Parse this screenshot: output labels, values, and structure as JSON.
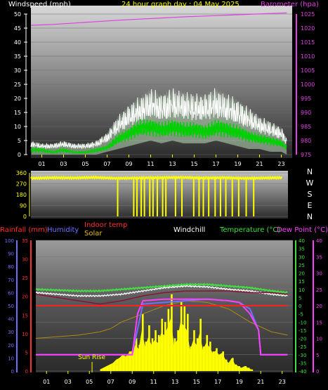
{
  "colors": {
    "wind": "#ffffff",
    "gust": "#ffffff",
    "avg": "#00d000",
    "barometer": "#e040e0",
    "direction": "#ffff00",
    "rainfall": "#ff2020",
    "humidity": "#7070ff",
    "indoor": "#ff3030",
    "solar": "#ffff00",
    "windchill": "#ffffff",
    "temperature": "#40e040",
    "dewpoint": "#ff40ff",
    "tick_yellow": "#ffff00"
  },
  "chart_data": [
    {
      "type": "line",
      "title": "24 hour graph day : 04 May 2025",
      "left_axis_label": "Windspeed (mph)",
      "right_axis_label": "Barometer (hpa)",
      "y_ticks": [
        "50",
        "45",
        "40",
        "35",
        "30",
        "25",
        "20",
        "15",
        "10",
        "5",
        "0"
      ],
      "y_right_ticks": [
        "1025",
        "1020",
        "1015",
        "1010",
        "1005",
        "1000",
        "995",
        "990",
        "985",
        "980",
        "975"
      ],
      "ylim": [
        0,
        50
      ],
      "ylim_right": [
        975,
        1025
      ],
      "xlim": [
        0,
        24
      ],
      "series": [
        {
          "role": "barometer",
          "x": [
            0,
            2,
            4,
            6,
            8,
            10,
            12,
            14,
            16,
            18,
            20,
            22,
            23.5
          ],
          "y": [
            1021,
            1021.3,
            1021.8,
            1022.3,
            1022.8,
            1023.2,
            1023.6,
            1024.0,
            1024.3,
            1024.6,
            1024.9,
            1025.2,
            1025.4
          ]
        },
        {
          "role": "gust",
          "x": [
            0,
            1,
            2,
            3,
            4,
            5,
            6,
            7,
            8,
            9,
            10,
            11,
            12,
            13,
            14,
            15,
            16,
            17,
            18,
            19,
            20,
            21,
            22,
            23,
            23.5
          ],
          "y": [
            5,
            4,
            4,
            5,
            4,
            4,
            5,
            8,
            14,
            18,
            21,
            24,
            22,
            24,
            23,
            22,
            22,
            24,
            22,
            20,
            17,
            14,
            12,
            10,
            6
          ]
        },
        {
          "role": "wind_average",
          "x": [
            0,
            1,
            2,
            3,
            4,
            5,
            6,
            7,
            8,
            9,
            10,
            11,
            12,
            13,
            14,
            15,
            16,
            17,
            18,
            19,
            20,
            21,
            22,
            23,
            23.5
          ],
          "y": [
            2,
            2,
            1,
            2,
            1,
            1,
            2,
            3,
            7,
            9,
            12,
            12,
            11,
            12,
            11,
            11,
            10,
            12,
            11,
            10,
            8,
            7,
            6,
            5,
            3
          ]
        },
        {
          "role": "wind_minimum",
          "x": [
            0,
            1,
            2,
            3,
            4,
            5,
            6,
            7,
            8,
            9,
            10,
            11,
            12,
            13,
            14,
            15,
            16,
            17,
            18,
            19,
            20,
            21,
            22,
            23,
            23.5
          ],
          "y": [
            0,
            0,
            0,
            0,
            0,
            0,
            0,
            1,
            2,
            3,
            4,
            5,
            4,
            5,
            4,
            4,
            4,
            5,
            4,
            3,
            2,
            2,
            1,
            1,
            0
          ]
        }
      ]
    },
    {
      "type": "scatter",
      "title": "",
      "y_ticks": [
        "360",
        "270",
        "180",
        "90",
        "0"
      ],
      "compass": [
        "N",
        "W",
        "S",
        "E",
        "N"
      ],
      "ylim": [
        0,
        360
      ],
      "xlim": [
        0,
        24
      ],
      "base_direction": {
        "x": [
          0,
          2,
          4,
          6,
          8,
          10,
          12,
          14,
          16,
          18,
          20,
          22,
          23.5
        ],
        "y": [
          315,
          320,
          318,
          322,
          315,
          318,
          320,
          322,
          318,
          320,
          315,
          318,
          320
        ]
      },
      "spikes_to_zero_hours": [
        8.1,
        9.6,
        9.9,
        10.3,
        10.6,
        11.1,
        11.4,
        11.8,
        12.3,
        12.6,
        13.5,
        14.1,
        15.2,
        15.7,
        16.1,
        16.6,
        17.2,
        17.7,
        18.2,
        18.8,
        19.4,
        20.1,
        20.8
      ]
    },
    {
      "type": "line",
      "labels": {
        "rainfall": "Rainfall (mm)",
        "humidity": "Humidity",
        "indoor": "Indoor temp",
        "solar": "Solar",
        "windchill": "Windchill",
        "temperature": "Temperature (°C)",
        "dewpoint": "Dew Point (°C)",
        "sunrise": "Sun Rise"
      },
      "axis_humidity": [
        "100",
        "90",
        "80",
        "70",
        "60",
        "50",
        "40",
        "30",
        "20",
        "10",
        "0"
      ],
      "axis_rain": [
        "35",
        "30",
        "25",
        "20",
        "15",
        "10",
        "5",
        "0"
      ],
      "axis_temp": [
        "40",
        "35",
        "30",
        "25",
        "20",
        "15",
        "10",
        "5",
        "0",
        "-5",
        "-10",
        "-15",
        "-20",
        "-25",
        "-30",
        "-35",
        "-40"
      ],
      "axis_far_right": [
        "40",
        "35",
        "30",
        "25",
        "20",
        "15",
        "10",
        "5",
        "0"
      ],
      "ylim_temp": [
        -40,
        40
      ],
      "ylim_humidity": [
        0,
        100
      ],
      "xlim": [
        0,
        24
      ],
      "x_ticks": [
        "01",
        "03",
        "05",
        "07",
        "09",
        "11",
        "13",
        "15",
        "17",
        "19",
        "21",
        "23"
      ],
      "sunrise_hour": 5.25,
      "series": [
        {
          "role": "temperature",
          "x": [
            0,
            2,
            4,
            6,
            8,
            10,
            12,
            14,
            16,
            18,
            20,
            22,
            23.5
          ],
          "y": [
            10,
            9.5,
            9,
            9,
            10,
            11,
            12,
            13,
            13,
            12,
            11,
            9,
            8
          ]
        },
        {
          "role": "windchill",
          "x": [
            0,
            2,
            4,
            6,
            8,
            10,
            12,
            14,
            16,
            18,
            20,
            22,
            23.5
          ],
          "y": [
            8,
            7,
            6,
            6,
            7,
            9,
            11,
            12,
            11.5,
            10,
            9,
            7,
            6
          ]
        },
        {
          "role": "indoor",
          "x": [
            0,
            2,
            4,
            6,
            8,
            10,
            12,
            14,
            16,
            18,
            20,
            22,
            23.5
          ],
          "y": [
            7,
            5,
            3,
            1,
            3,
            6,
            8,
            9,
            9,
            9,
            8,
            8,
            7
          ]
        },
        {
          "role": "solar",
          "x": [
            0,
            2,
            4,
            6,
            7,
            8,
            10,
            12,
            14,
            16,
            18,
            20,
            22,
            23.5
          ],
          "y": [
            -20,
            -19,
            -18,
            -16,
            -14,
            -10,
            -5,
            0,
            3,
            2,
            -2,
            -10,
            -16,
            -18
          ]
        },
        {
          "role": "humidity",
          "x": [
            0,
            2,
            4,
            6,
            8,
            9,
            10,
            12,
            14,
            16,
            18,
            19,
            20,
            20.8,
            21,
            22,
            23.5
          ],
          "y": [
            -30,
            -30,
            -30,
            -30,
            -30,
            -30,
            1,
            2,
            3,
            4,
            3,
            2,
            -2,
            -15,
            -30,
            -30,
            -30
          ]
        },
        {
          "role": "dewpoint",
          "x": [
            0,
            2,
            4,
            6,
            8,
            9,
            9.5,
            10,
            12,
            14,
            16,
            18,
            19,
            20,
            20.8,
            21,
            22,
            23.5
          ],
          "y": [
            -30,
            -30,
            -30,
            -30,
            -30,
            -30,
            -5,
            3,
            4,
            4,
            4,
            3,
            2,
            -5,
            -15,
            -30,
            -30,
            -30
          ]
        },
        {
          "role": "rainfall",
          "x": [
            0,
            23.5
          ],
          "y": [
            0,
            0
          ]
        }
      ],
      "solar_bars": {
        "x": [
          6.0,
          6.3,
          6.6,
          6.9,
          7.2,
          7.5,
          7.8,
          8.1,
          8.4,
          8.7,
          9.0,
          9.3,
          9.6,
          9.9,
          10.2,
          10.5,
          10.8,
          11.1,
          11.4,
          11.7,
          12.0,
          12.3,
          12.6,
          12.9,
          13.2,
          13.5,
          13.8,
          14.1,
          14.4,
          14.7,
          15.0,
          15.3,
          15.6,
          15.9,
          16.2,
          16.5,
          16.8,
          17.1,
          17.4,
          17.7,
          18.0,
          18.3,
          18.6,
          18.9,
          19.2,
          19.5,
          19.8,
          20.1
        ],
        "y": [
          -39,
          -38,
          -37,
          -36,
          -35,
          -33,
          -32,
          -30,
          -31,
          -28,
          -26,
          -20,
          -24,
          -5,
          -22,
          -12,
          -20,
          -15,
          -18,
          -8,
          -10,
          -2,
          7,
          -20,
          -15,
          3,
          0,
          -5,
          -25,
          -15,
          -20,
          -8,
          -25,
          -18,
          -22,
          -28,
          -26,
          -30,
          -28,
          -33,
          -35,
          -32,
          -36,
          -37,
          -38,
          -37,
          -38,
          -39
        ]
      }
    }
  ]
}
